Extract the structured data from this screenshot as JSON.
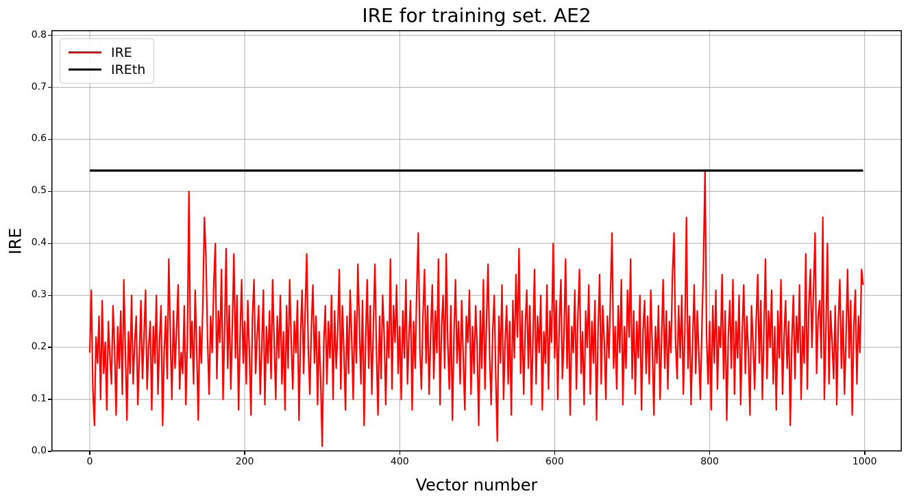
{
  "chart_data": {
    "type": "line",
    "title": "IRE for training set. AE2",
    "xlabel": "Vector number",
    "ylabel": "IRE",
    "xlim": [
      -49.5,
      1048
    ],
    "ylim": [
      0,
      0.81
    ],
    "xticks": [
      0,
      200,
      400,
      600,
      800,
      1000
    ],
    "yticks": [
      0,
      0.1,
      0.2,
      0.3,
      0.4,
      0.5,
      0.6,
      0.7,
      0.8
    ],
    "grid": true,
    "colors": {
      "background": "#ffffff",
      "grid": "#b0b0b0",
      "spine": "#000000",
      "ire_line": "#ff0000",
      "ireth_line": "#000000"
    },
    "legend": {
      "position": "upper-left",
      "items": [
        {
          "label": "IRE",
          "color": "#ff0000"
        },
        {
          "label": "IREth",
          "color": "#000000"
        }
      ]
    },
    "series": [
      {
        "name": "IRE",
        "kind": "line",
        "color": "#ff0000",
        "x_start": 0,
        "x_step": 2,
        "values": [
          0.19,
          0.31,
          0.12,
          0.05,
          0.22,
          0.17,
          0.26,
          0.1,
          0.29,
          0.15,
          0.21,
          0.08,
          0.25,
          0.18,
          0.13,
          0.28,
          0.2,
          0.07,
          0.24,
          0.16,
          0.27,
          0.11,
          0.33,
          0.19,
          0.06,
          0.23,
          0.15,
          0.3,
          0.13,
          0.21,
          0.26,
          0.09,
          0.18,
          0.29,
          0.14,
          0.22,
          0.31,
          0.12,
          0.2,
          0.25,
          0.08,
          0.24,
          0.17,
          0.3,
          0.11,
          0.21,
          0.28,
          0.05,
          0.19,
          0.26,
          0.14,
          0.37,
          0.22,
          0.1,
          0.27,
          0.16,
          0.23,
          0.32,
          0.12,
          0.19,
          0.15,
          0.28,
          0.09,
          0.21,
          0.5,
          0.18,
          0.25,
          0.13,
          0.31,
          0.2,
          0.06,
          0.24,
          0.17,
          0.29,
          0.45,
          0.37,
          0.22,
          0.11,
          0.26,
          0.19,
          0.32,
          0.4,
          0.14,
          0.27,
          0.21,
          0.35,
          0.1,
          0.23,
          0.39,
          0.16,
          0.28,
          0.12,
          0.24,
          0.38,
          0.18,
          0.3,
          0.08,
          0.22,
          0.33,
          0.17,
          0.25,
          0.13,
          0.29,
          0.19,
          0.07,
          0.26,
          0.33,
          0.15,
          0.22,
          0.28,
          0.11,
          0.2,
          0.31,
          0.09,
          0.24,
          0.17,
          0.27,
          0.14,
          0.33,
          0.21,
          0.1,
          0.26,
          0.18,
          0.3,
          0.13,
          0.23,
          0.08,
          0.28,
          0.16,
          0.33,
          0.21,
          0.12,
          0.25,
          0.19,
          0.29,
          0.06,
          0.22,
          0.31,
          0.15,
          0.27,
          0.38,
          0.2,
          0.11,
          0.24,
          0.32,
          0.17,
          0.26,
          0.09,
          0.23,
          0.14,
          0.01,
          0.21,
          0.28,
          0.13,
          0.25,
          0.18,
          0.3,
          0.1,
          0.27,
          0.16,
          0.23,
          0.35,
          0.12,
          0.28,
          0.19,
          0.08,
          0.26,
          0.15,
          0.31,
          0.22,
          0.1,
          0.27,
          0.17,
          0.36,
          0.24,
          0.13,
          0.29,
          0.05,
          0.21,
          0.33,
          0.16,
          0.28,
          0.11,
          0.24,
          0.36,
          0.19,
          0.07,
          0.26,
          0.14,
          0.3,
          0.22,
          0.09,
          0.25,
          0.18,
          0.37,
          0.12,
          0.28,
          0.21,
          0.32,
          0.15,
          0.24,
          0.1,
          0.27,
          0.18,
          0.33,
          0.13,
          0.22,
          0.29,
          0.08,
          0.25,
          0.16,
          0.31,
          0.42,
          0.2,
          0.12,
          0.26,
          0.35,
          0.17,
          0.28,
          0.11,
          0.23,
          0.32,
          0.14,
          0.27,
          0.19,
          0.37,
          0.09,
          0.24,
          0.3,
          0.16,
          0.38,
          0.21,
          0.12,
          0.28,
          0.06,
          0.22,
          0.33,
          0.17,
          0.25,
          0.13,
          0.29,
          0.18,
          0.08,
          0.26,
          0.21,
          0.31,
          0.11,
          0.24,
          0.15,
          0.28,
          0.2,
          0.05,
          0.27,
          0.16,
          0.33,
          0.12,
          0.25,
          0.36,
          0.19,
          0.09,
          0.23,
          0.3,
          0.14,
          0.02,
          0.26,
          0.17,
          0.32,
          0.1,
          0.21,
          0.28,
          0.13,
          0.25,
          0.07,
          0.29,
          0.18,
          0.34,
          0.22,
          0.39,
          0.15,
          0.27,
          0.11,
          0.24,
          0.31,
          0.16,
          0.28,
          0.09,
          0.22,
          0.35,
          0.13,
          0.26,
          0.19,
          0.3,
          0.08,
          0.23,
          0.17,
          0.32,
          0.12,
          0.27,
          0.21,
          0.4,
          0.18,
          0.29,
          0.1,
          0.25,
          0.33,
          0.14,
          0.22,
          0.37,
          0.16,
          0.28,
          0.07,
          0.24,
          0.19,
          0.31,
          0.12,
          0.26,
          0.35,
          0.15,
          0.23,
          0.09,
          0.27,
          0.2,
          0.32,
          0.11,
          0.25,
          0.17,
          0.29,
          0.06,
          0.23,
          0.34,
          0.13,
          0.28,
          0.21,
          0.1,
          0.26,
          0.18,
          0.3,
          0.42,
          0.16,
          0.24,
          0.12,
          0.28,
          0.19,
          0.33,
          0.09,
          0.24,
          0.16,
          0.31,
          0.22,
          0.37,
          0.14,
          0.27,
          0.11,
          0.25,
          0.18,
          0.3,
          0.08,
          0.23,
          0.29,
          0.15,
          0.26,
          0.13,
          0.31,
          0.2,
          0.07,
          0.24,
          0.17,
          0.28,
          0.1,
          0.22,
          0.33,
          0.16,
          0.27,
          0.12,
          0.25,
          0.19,
          0.34,
          0.42,
          0.21,
          0.14,
          0.28,
          0.18,
          0.3,
          0.11,
          0.23,
          0.45,
          0.16,
          0.26,
          0.09,
          0.21,
          0.32,
          0.15,
          0.27,
          0.19,
          0.1,
          0.24,
          0.36,
          0.54,
          0.22,
          0.13,
          0.25,
          0.08,
          0.28,
          0.17,
          0.31,
          0.12,
          0.24,
          0.2,
          0.34,
          0.14,
          0.27,
          0.06,
          0.22,
          0.29,
          0.16,
          0.33,
          0.11,
          0.25,
          0.18,
          0.3,
          0.09,
          0.23,
          0.32,
          0.15,
          0.26,
          0.19,
          0.07,
          0.28,
          0.21,
          0.12,
          0.25,
          0.34,
          0.17,
          0.29,
          0.1,
          0.23,
          0.37,
          0.14,
          0.27,
          0.2,
          0.31,
          0.13,
          0.24,
          0.08,
          0.27,
          0.18,
          0.33,
          0.11,
          0.22,
          0.29,
          0.16,
          0.25,
          0.05,
          0.21,
          0.3,
          0.14,
          0.26,
          0.19,
          0.32,
          0.1,
          0.24,
          0.17,
          0.38,
          0.12,
          0.28,
          0.35,
          0.2,
          0.31,
          0.42,
          0.15,
          0.26,
          0.29,
          0.18,
          0.45,
          0.1,
          0.23,
          0.4,
          0.13,
          0.27,
          0.21,
          0.14,
          0.28,
          0.09,
          0.25,
          0.33,
          0.16,
          0.27,
          0.11,
          0.22,
          0.35,
          0.18,
          0.29,
          0.07,
          0.24,
          0.31,
          0.13,
          0.26,
          0.19,
          0.35,
          0.32
        ]
      },
      {
        "name": "IREth",
        "kind": "hline",
        "color": "#000000",
        "y": 0.54,
        "x_range": [
          0,
          998
        ]
      }
    ]
  }
}
